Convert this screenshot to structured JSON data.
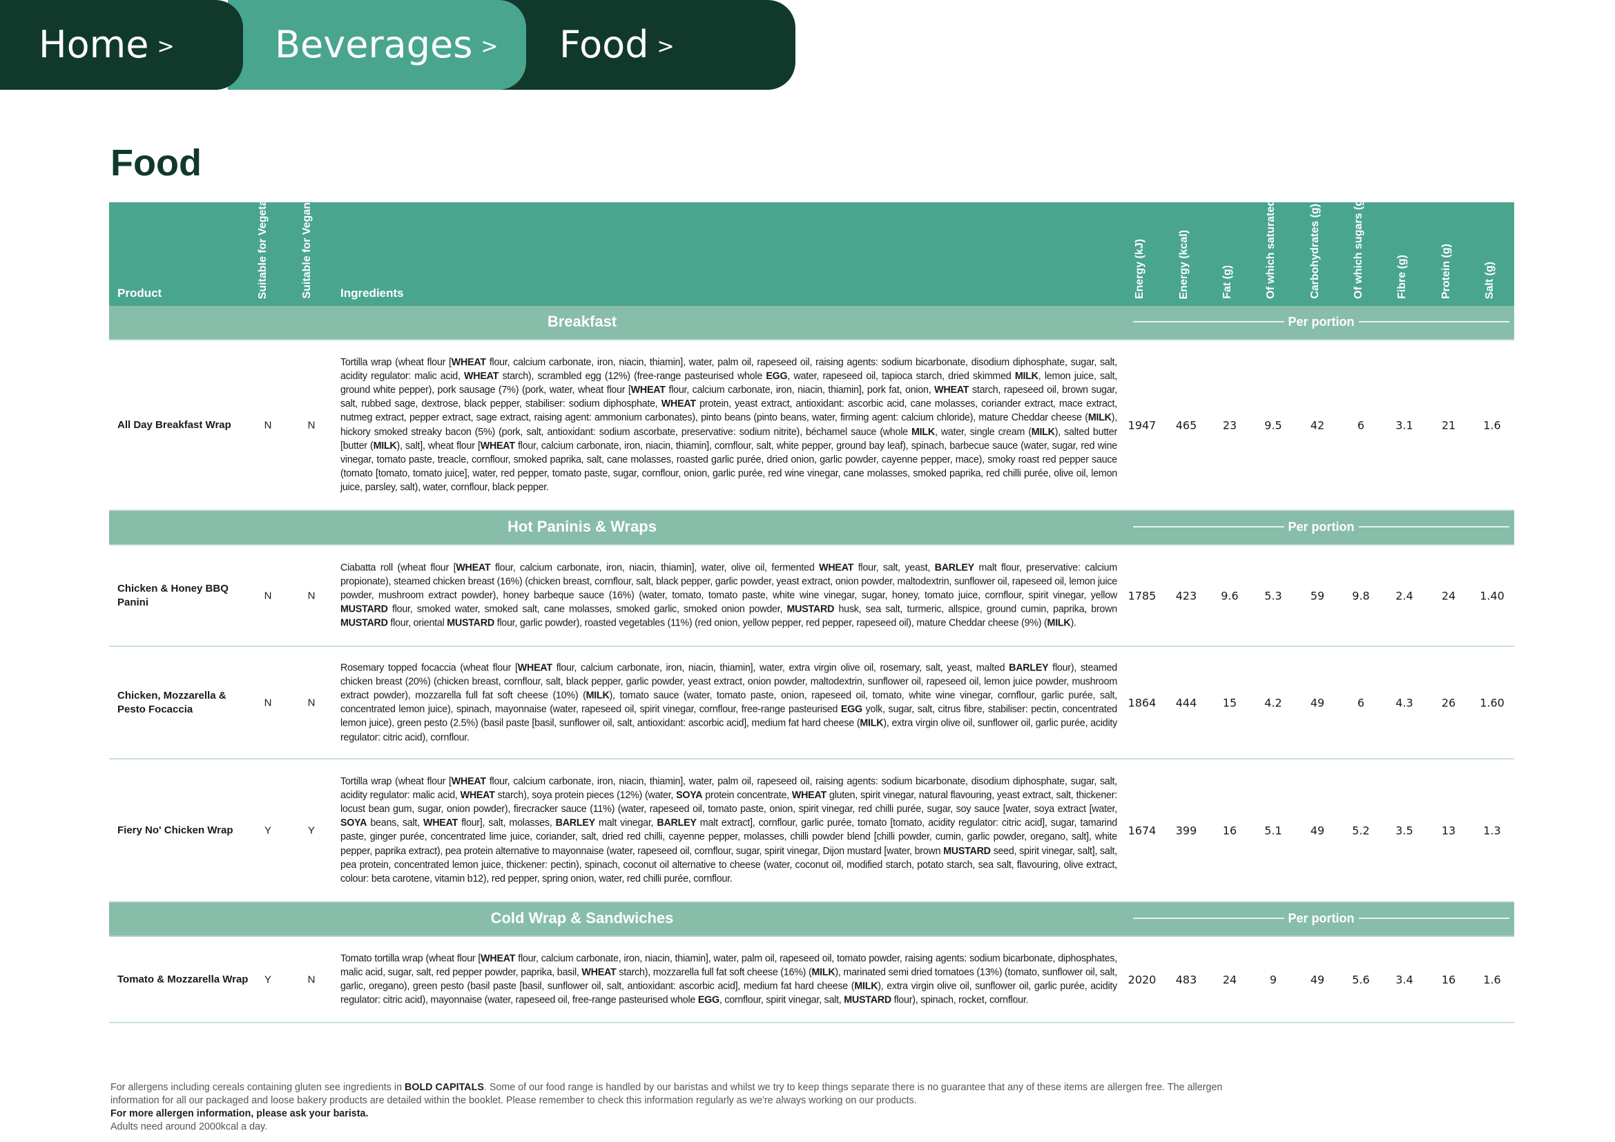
{
  "nav": {
    "tabs": [
      {
        "label": "Home",
        "chevron": ">"
      },
      {
        "label": "Beverages",
        "chevron": ">"
      },
      {
        "label": "Food",
        "chevron": ">"
      }
    ]
  },
  "title": "Food",
  "colors": {
    "dark_green": "#10392c",
    "header_green": "#4aa58e",
    "section_green": "#88bda9"
  },
  "table": {
    "headers": {
      "product": "Product",
      "vegetarian": "Suitable for Vegetarian",
      "vegan": "Suitable for Vegan",
      "ingredients": "Ingredients",
      "nutrients": [
        "Energy (kJ)",
        "Energy (kcal)",
        "Fat (g)",
        "Of which saturated (g)",
        "Carbohydrates (g)",
        "Of which sugars (g)",
        "Fibre (g)",
        "Protein (g)",
        "Salt (g)"
      ]
    },
    "per_portion": "Per portion",
    "sections": [
      {
        "name": "Breakfast",
        "rows": [
          {
            "product": "All Day Breakfast Wrap",
            "vegetarian": "N",
            "vegan": "N",
            "ingredients": [
              "Tortilla wrap (wheat flour [",
              "WHEAT",
              " flour, calcium carbonate, iron, niacin, thiamin], water, palm oil, rapeseed oil, raising agents: sodium bicarbonate, disodium diphosphate, sugar, salt, acidity regulator: malic acid, ",
              "WHEAT",
              " starch), scrambled egg (12%) (free-range pasteurised whole ",
              "EGG",
              ", water, rapeseed oil, tapioca starch, dried skimmed ",
              "MILK",
              ", lemon juice, salt, ground white pepper), pork sausage (7%) (pork, water, wheat flour [",
              "WHEAT",
              " flour, calcium carbonate, iron, niacin, thiamin], pork fat, onion, ",
              "WHEAT",
              " starch, rapeseed oil, brown sugar, salt, rubbed sage, dextrose, black pepper, stabiliser: sodium diphosphate, ",
              "WHEAT",
              " protein, yeast extract, antioxidant: ascorbic acid, cane molasses, coriander extract, mace extract, nutmeg extract, pepper extract, sage extract, raising agent: ammonium carbonates), pinto beans (pinto beans, water, firming agent: calcium chloride), mature Cheddar cheese (",
              "MILK",
              "), hickory smoked streaky bacon (5%) (pork, salt, antioxidant: sodium ascorbate, preservative: sodium nitrite), béchamel sauce (whole ",
              "MILK",
              ", water, single cream (",
              "MILK",
              "), salted butter [butter (",
              "MILK",
              "), salt], wheat flour [",
              "WHEAT",
              " flour, calcium carbonate, iron, niacin, thiamin], cornflour, salt, white pepper, ground bay leaf), spinach, barbecue sauce (water, sugar, red wine vinegar, tomato paste, treacle, cornflour, smoked paprika, salt, cane molasses, roasted garlic purée, dried onion, garlic powder, cayenne pepper, mace), smoky roast red pepper sauce (tomato [tomato, tomato juice], water, red pepper, tomato paste, sugar, cornflour, onion, garlic purée, red wine vinegar, cane molasses, smoked paprika, red chilli purée, olive oil, lemon juice, parsley, salt), water, cornflour, black pepper."
            ],
            "values": [
              "1947",
              "465",
              "23",
              "9.5",
              "42",
              "6",
              "3.1",
              "21",
              "1.6"
            ]
          }
        ]
      },
      {
        "name": "Hot Paninis & Wraps",
        "rows": [
          {
            "product": "Chicken & Honey BBQ Panini",
            "vegetarian": "N",
            "vegan": "N",
            "ingredients": [
              "Ciabatta roll (wheat flour [",
              "WHEAT",
              " flour, calcium carbonate, iron, niacin, thiamin], water, olive oil, fermented ",
              "WHEAT",
              " flour, salt, yeast, ",
              "BARLEY",
              " malt flour, preservative: calcium propionate), steamed chicken breast (16%) (chicken breast, cornflour, salt, black pepper, garlic powder, yeast extract, onion powder, maltodextrin, sunflower oil, rapeseed oil, lemon juice powder, mushroom extract powder), honey barbeque sauce (16%) (water, tomato, tomato paste, white wine vinegar, sugar, honey, tomato juice, cornflour, spirit vinegar, yellow ",
              "MUSTARD",
              " flour, smoked water, smoked salt, cane molasses, smoked garlic, smoked onion powder, ",
              "MUSTARD",
              " husk, sea salt, turmeric, allspice, ground cumin, paprika, brown ",
              "MUSTARD",
              " flour, oriental ",
              "MUSTARD",
              " flour, garlic powder), roasted vegetables (11%) (red onion, yellow pepper, red pepper, rapeseed oil), mature Cheddar cheese (9%) (",
              "MILK",
              ")."
            ],
            "values": [
              "1785",
              "423",
              "9.6",
              "5.3",
              "59",
              "9.8",
              "2.4",
              "24",
              "1.40"
            ]
          },
          {
            "product": "Chicken, Mozzarella & Pesto Focaccia",
            "vegetarian": "N",
            "vegan": "N",
            "ingredients": [
              "Rosemary topped focaccia (wheat flour [",
              "WHEAT",
              " flour, calcium carbonate, iron, niacin, thiamin], water, extra virgin olive oil, rosemary, salt, yeast, malted ",
              "BARLEY",
              " flour), steamed chicken breast (20%) (chicken breast, cornflour, salt, black pepper, garlic powder, yeast extract, onion powder, maltodextrin, sunflower oil, rapeseed oil, lemon juice powder, mushroom extract powder), mozzarella full fat soft cheese (10%) (",
              "MILK",
              "), tomato sauce (water, tomato paste, onion, rapeseed oil, tomato, white wine vinegar, cornflour, garlic purée, salt, concentrated lemon juice), spinach, mayonnaise (water, rapeseed oil, spirit vinegar, cornflour, free-range pasteurised ",
              "EGG",
              " yolk, sugar, salt, citrus fibre, stabiliser: pectin, concentrated lemon juice), green pesto (2.5%) (basil paste [basil, sunflower oil, salt, antioxidant: ascorbic acid], medium fat hard cheese (",
              "MILK",
              "), extra virgin olive oil, sunflower oil, garlic purée, acidity regulator: citric acid), cornflour."
            ],
            "values": [
              "1864",
              "444",
              "15",
              "4.2",
              "49",
              "6",
              "4.3",
              "26",
              "1.60"
            ]
          },
          {
            "product": "Fiery No' Chicken Wrap",
            "vegetarian": "Y",
            "vegan": "Y",
            "ingredients": [
              "Tortilla wrap (wheat flour [",
              "WHEAT",
              " flour, calcium carbonate, iron, niacin, thiamin], water, palm oil, rapeseed oil, raising agents: sodium bicarbonate, disodium diphosphate, sugar, salt, acidity regulator: malic acid, ",
              "WHEAT",
              " starch), soya protein pieces (12%) (water, ",
              "SOYA",
              " protein concentrate, ",
              "WHEAT",
              " gluten, spirit vinegar, natural flavouring, yeast extract, salt, thickener: locust bean gum, sugar, onion powder), firecracker sauce (11%) (water, rapeseed oil, tomato paste, onion, spirit vinegar, red chilli purée, sugar, soy sauce [water, soya extract [water, ",
              "SOYA",
              " beans, salt, ",
              "WHEAT",
              " flour], salt, molasses, ",
              "BARLEY",
              " malt vinegar, ",
              "BARLEY",
              " malt extract], cornflour, garlic purée, tomato [tomato, acidity regulator: citric acid], sugar, tamarind paste, ginger purée, concentrated lime juice, coriander, salt, dried red chilli, cayenne pepper, molasses, chilli powder blend [chilli powder, cumin, garlic powder, oregano, salt], white pepper, paprika extract), pea protein alternative to mayonnaise (water, rapeseed oil, cornflour, sugar, spirit vinegar, Dijon mustard [water, brown ",
              "MUSTARD",
              " seed, spirit vinegar, salt], salt, pea protein, concentrated lemon juice, thickener: pectin), spinach, coconut oil alternative to cheese (water, coconut oil, modified starch, potato starch, sea salt, flavouring, olive extract, colour: beta carotene, vitamin b12), red pepper, spring onion, water, red chilli purée, cornflour."
            ],
            "values": [
              "1674",
              "399",
              "16",
              "5.1",
              "49",
              "5.2",
              "3.5",
              "13",
              "1.3"
            ]
          }
        ]
      },
      {
        "name": "Cold Wrap & Sandwiches",
        "rows": [
          {
            "product": "Tomato & Mozzarella Wrap",
            "vegetarian": "Y",
            "vegan": "N",
            "ingredients": [
              "Tomato tortilla wrap (wheat flour [",
              "WHEAT",
              " flour, calcium carbonate, iron, niacin, thiamin], water, palm oil, rapeseed oil, tomato powder, raising agents: sodium bicarbonate, diphosphates, malic acid, sugar, salt, red pepper powder, paprika, basil, ",
              "WHEAT",
              " starch), mozzarella full fat soft cheese (16%) (",
              "MILK",
              "), marinated semi dried tomatoes (13%) (tomato, sunflower oil, salt, garlic, oregano), green pesto (basil paste [basil, sunflower oil, salt, antioxidant: ascorbic acid], medium fat hard cheese (",
              "MILK",
              "), extra virgin olive oil, sunflower oil, garlic purée, acidity regulator: citric acid), mayonnaise (water, rapeseed oil, free-range pasteurised whole ",
              "EGG",
              ", cornflour, spirit vinegar, salt, ",
              "MUSTARD",
              " flour), spinach, rocket, cornflour."
            ],
            "values": [
              "2020",
              "483",
              "24",
              "9",
              "49",
              "5.6",
              "3.4",
              "16",
              "1.6"
            ]
          }
        ]
      }
    ]
  },
  "footer": {
    "line1": [
      "For allergens including cereals containing gluten see ingredients in ",
      "BOLD CAPITALS",
      ". Some of our food range is handled by our baristas and whilst we try to keep things separate there is no guarantee that any of these items are allergen free. The allergen information for all our packaged and loose bakery products are detailed within the booklet. Please remember to check this information regularly as we're always working on our products."
    ],
    "line2": "For more allergen information, please ask your barista.",
    "line3": "Adults need around 2000kcal a day."
  }
}
